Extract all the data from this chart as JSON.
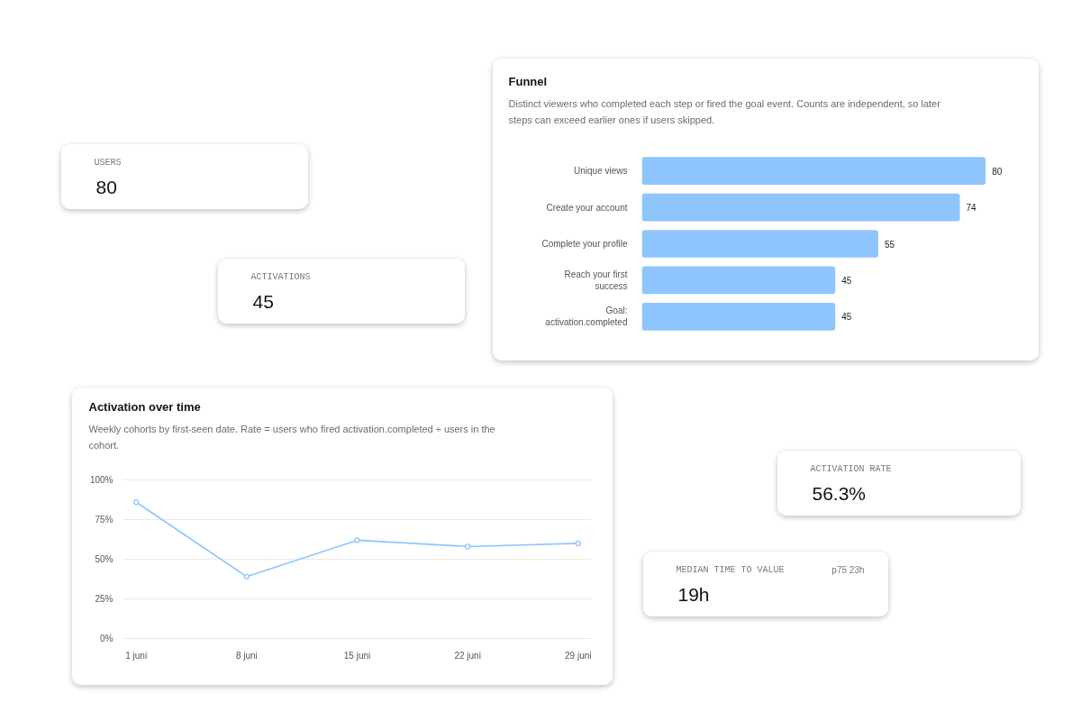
{
  "chart_data": [
    {
      "type": "other",
      "title": "USERS",
      "annotations": [
        "80"
      ]
    },
    {
      "type": "other",
      "title": "ACTIVATIONS",
      "annotations": [
        "45"
      ]
    },
    {
      "type": "bar",
      "title": "Funnel",
      "subtitle": "Distinct viewers who completed each step or fired the goal event. Counts are independent, so later steps can exceed earlier ones if users skipped.",
      "orientation": "horizontal",
      "categories": [
        "Unique views",
        "Create your account",
        "Complete your profile",
        "Reach your first success",
        "Goal: activation.completed"
      ],
      "values": [
        80,
        74,
        55,
        45,
        45
      ],
      "color": "#8ec5fc",
      "data_labels": true
    },
    {
      "type": "line",
      "title": "Activation over time",
      "subtitle": "Weekly cohorts by first-seen date. Rate = users who fired activation.completed ÷ users in the cohort.",
      "categories": [
        "1 juni",
        "8 juni",
        "15 juni",
        "22 juni",
        "29 juni"
      ],
      "series": [
        {
          "color": "#8ec5fc",
          "values": [
            86,
            39,
            62,
            58,
            60
          ]
        }
      ],
      "ylim": [
        0,
        100
      ],
      "yticks": [
        {
          "value": 0,
          "label": "0%"
        },
        {
          "value": 25,
          "label": "25%"
        },
        {
          "value": 50,
          "label": "50%"
        },
        {
          "value": 75,
          "label": "75%"
        },
        {
          "value": 100,
          "label": "100%"
        }
      ],
      "grid": "y",
      "marker": "circle"
    },
    {
      "type": "other",
      "title": "ACTIVATION RATE",
      "annotations": [
        "56.3%"
      ]
    },
    {
      "type": "other",
      "title": "MEDIAN TIME TO VALUE",
      "annotations": [
        "19h",
        "p75 23h"
      ]
    }
  ]
}
